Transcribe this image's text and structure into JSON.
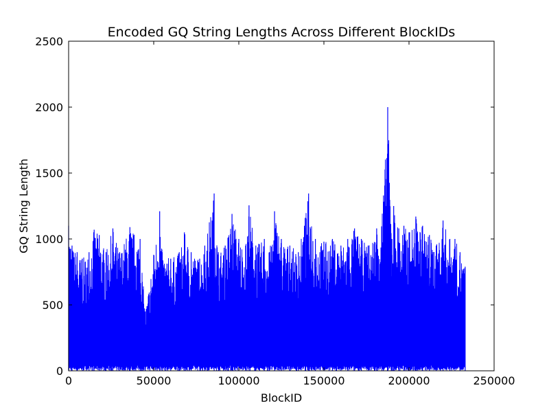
{
  "chart_data": {
    "type": "line",
    "title": "Encoded GQ String Lengths Across Different BlockIDs",
    "xlabel": "BlockID",
    "ylabel": "GQ String Length",
    "xlim": [
      0,
      250000
    ],
    "ylim": [
      0,
      2500
    ],
    "xticks": [
      0,
      50000,
      100000,
      150000,
      200000,
      250000
    ],
    "yticks": [
      0,
      500,
      1000,
      1500,
      2000,
      2500
    ],
    "grid": false,
    "series": [
      {
        "color": "#0000ff",
        "x_range": [
          0,
          233000
        ],
        "min_value": 0,
        "envelope": [
          [
            0,
            1100
          ],
          [
            2000,
            950
          ],
          [
            5000,
            900
          ],
          [
            8000,
            850
          ],
          [
            12000,
            900
          ],
          [
            15000,
            1070
          ],
          [
            18000,
            1030
          ],
          [
            22000,
            900
          ],
          [
            26000,
            1080
          ],
          [
            30000,
            900
          ],
          [
            36000,
            1090
          ],
          [
            42000,
            1000
          ],
          [
            45000,
            450
          ],
          [
            50000,
            880
          ],
          [
            53500,
            1210
          ],
          [
            55000,
            900
          ],
          [
            60000,
            850
          ],
          [
            65000,
            900
          ],
          [
            68000,
            1050
          ],
          [
            72000,
            900
          ],
          [
            77000,
            850
          ],
          [
            80000,
            950
          ],
          [
            85500,
            1345
          ],
          [
            88000,
            900
          ],
          [
            92000,
            950
          ],
          [
            96000,
            1190
          ],
          [
            100000,
            1000
          ],
          [
            104000,
            950
          ],
          [
            106000,
            1255
          ],
          [
            110000,
            950
          ],
          [
            115000,
            1000
          ],
          [
            118000,
            900
          ],
          [
            121000,
            1210
          ],
          [
            125000,
            1000
          ],
          [
            130000,
            950
          ],
          [
            135000,
            900
          ],
          [
            139000,
            1160
          ],
          [
            141000,
            1345
          ],
          [
            145000,
            1000
          ],
          [
            150000,
            980
          ],
          [
            155000,
            1000
          ],
          [
            160000,
            950
          ],
          [
            164000,
            1000
          ],
          [
            168000,
            1080
          ],
          [
            172000,
            1000
          ],
          [
            176000,
            950
          ],
          [
            181000,
            1080
          ],
          [
            185000,
            1330
          ],
          [
            187500,
            2000
          ],
          [
            190000,
            1000
          ],
          [
            191000,
            1250
          ],
          [
            194000,
            1080
          ],
          [
            197000,
            1100
          ],
          [
            200000,
            1050
          ],
          [
            204000,
            1170
          ],
          [
            208000,
            1100
          ],
          [
            212000,
            1030
          ],
          [
            216000,
            950
          ],
          [
            220000,
            1140
          ],
          [
            224000,
            1000
          ],
          [
            227000,
            1000
          ],
          [
            230000,
            900
          ],
          [
            233000,
            790
          ]
        ]
      }
    ]
  }
}
